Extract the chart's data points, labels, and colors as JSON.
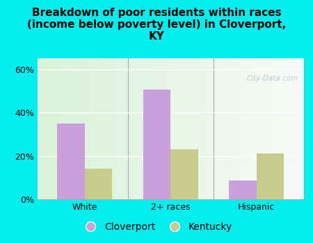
{
  "title": "Breakdown of poor residents within races\n(income below poverty level) in Cloverport,\nKY",
  "categories": [
    "White",
    "2+ races",
    "Hispanic"
  ],
  "cloverport_values": [
    35.0,
    50.5,
    8.5
  ],
  "kentucky_values": [
    14.0,
    23.0,
    21.0
  ],
  "cloverport_color": "#c9a0dc",
  "kentucky_color": "#c8cc8a",
  "background_color": "#00eeee",
  "ylim": [
    0,
    65
  ],
  "yticks": [
    0,
    20,
    40,
    60
  ],
  "ytick_labels": [
    "0%",
    "20%",
    "40%",
    "60%"
  ],
  "bar_width": 0.32,
  "title_fontsize": 11,
  "tick_fontsize": 9,
  "legend_fontsize": 10,
  "watermark": "City-Data.com"
}
